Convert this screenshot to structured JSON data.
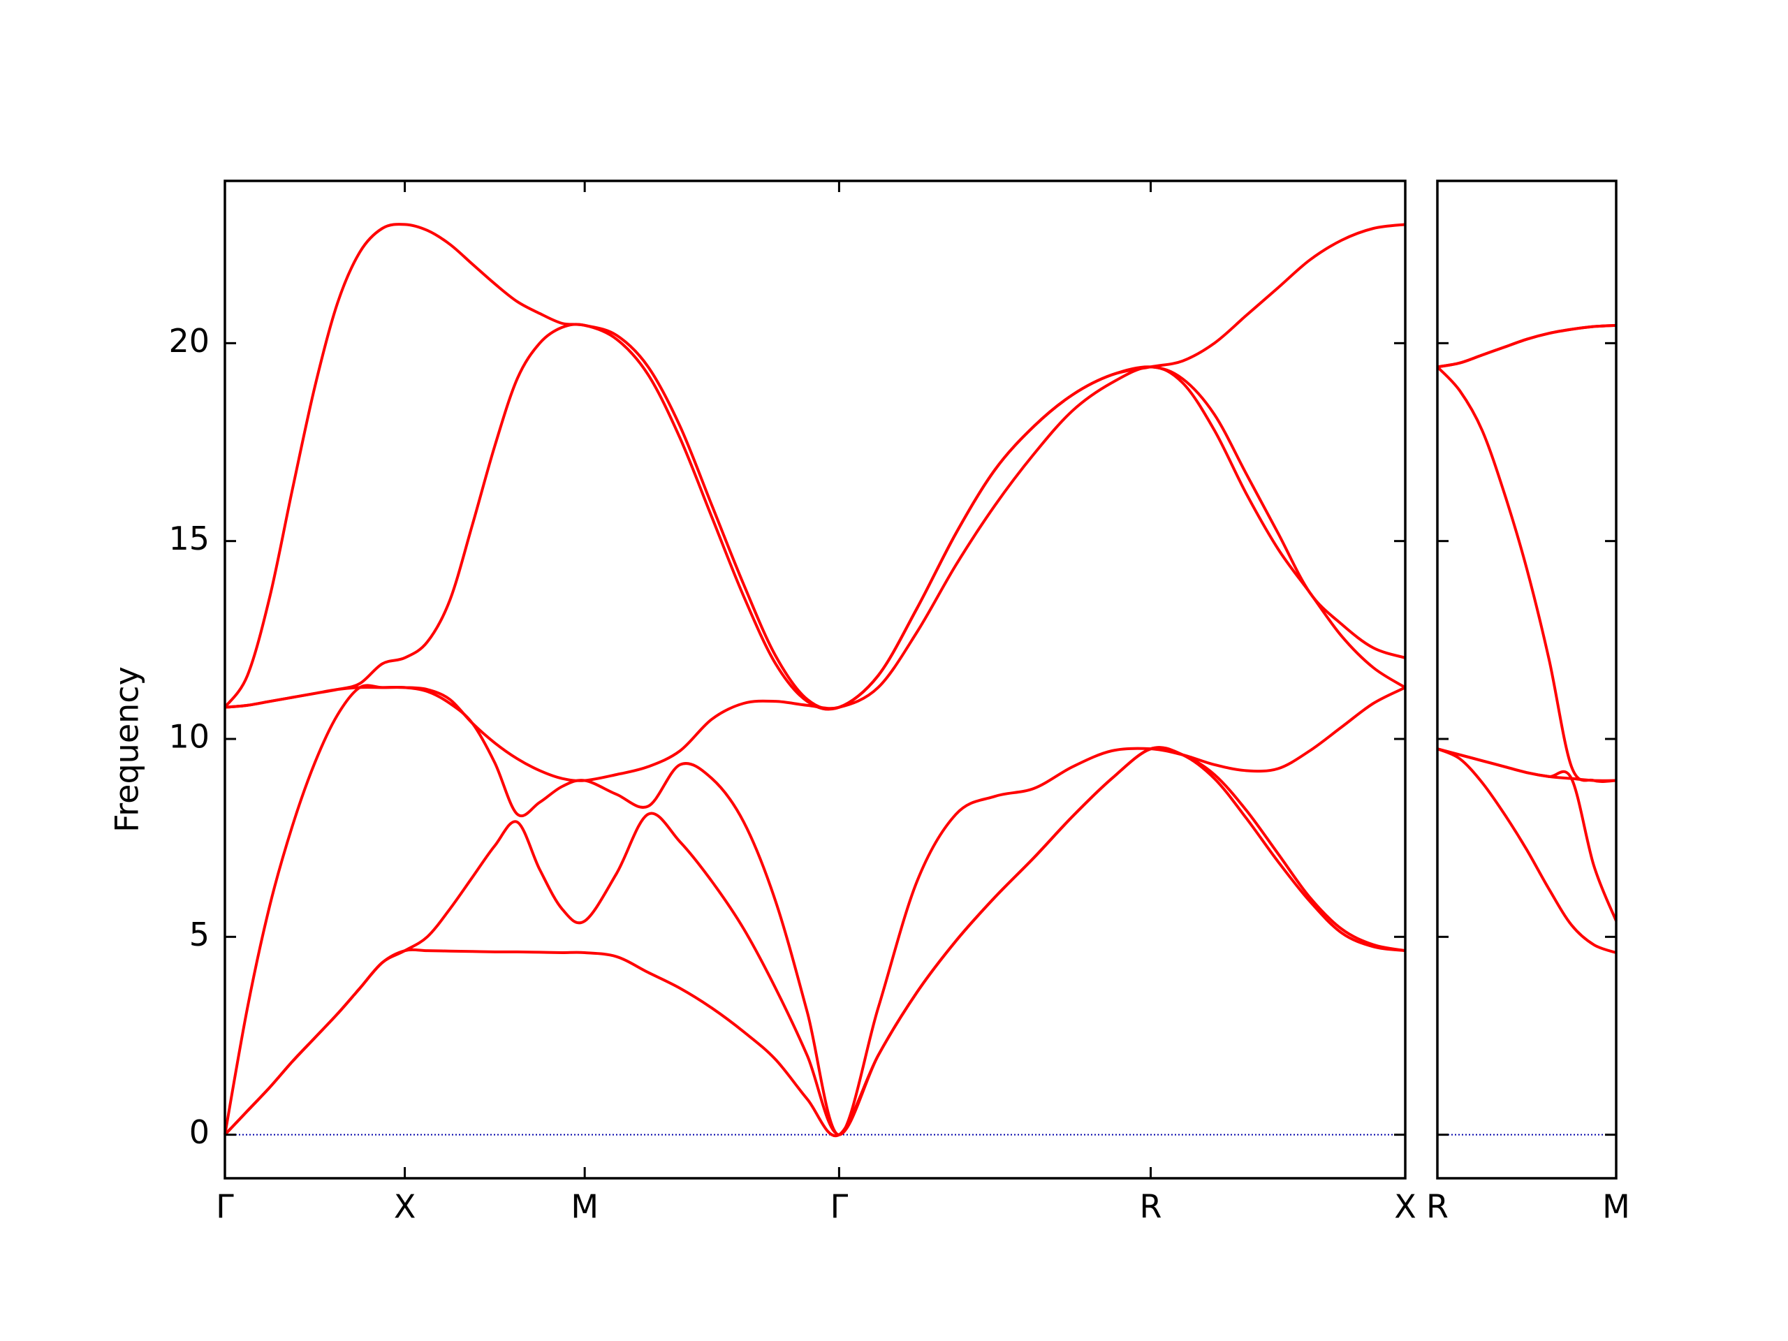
{
  "chart_data": [
    {
      "type": "line",
      "ylabel": "Frequency",
      "x": [
        0,
        0.125,
        0.25,
        0.375,
        0.5,
        0.625,
        0.75,
        0.875,
        1,
        1.125,
        1.25,
        1.375,
        1.5,
        1.625,
        1.75,
        1.875,
        2,
        2.177,
        2.353,
        2.53,
        2.707,
        2.884,
        3.061,
        3.237,
        3.414,
        3.631,
        3.847,
        4.064,
        4.28,
        4.497,
        4.713,
        4.93,
        5.146,
        5.323,
        5.5,
        5.677,
        5.854,
        6.03,
        6.207,
        6.384,
        6.561
      ],
      "xlim": [
        0,
        6.561
      ],
      "ylim": [
        -1.1,
        24.1
      ],
      "xticks": [
        {
          "value": 0,
          "label": "Γ"
        },
        {
          "value": 1,
          "label": "X"
        },
        {
          "value": 2,
          "label": "M"
        },
        {
          "value": 3.414,
          "label": "Γ"
        },
        {
          "value": 5.146,
          "label": "R"
        },
        {
          "value": 6.561,
          "label": "X"
        }
      ],
      "yticks": [
        0,
        5,
        10,
        15,
        20
      ],
      "ytick_labels": true,
      "hline": 0,
      "hline_color": "#0000aa",
      "series": [
        {
          "color": "#ff0000",
          "values": [
            0,
            0.6,
            1.2,
            1.85,
            2.45,
            3.05,
            3.7,
            4.35,
            4.65,
            4.65,
            4.64,
            4.63,
            4.62,
            4.62,
            4.61,
            4.6,
            4.6,
            4.5,
            4.1,
            3.7,
            3.2,
            2.6,
            1.9,
            0.9,
            0,
            2.0,
            3.6,
            4.9,
            6.0,
            7.0,
            8.05,
            9.0,
            9.75,
            9.6,
            9.0,
            8.0,
            6.9,
            5.9,
            5.1,
            4.75,
            4.65
          ]
        },
        {
          "color": "#ff0000",
          "values": [
            0,
            0.6,
            1.2,
            1.85,
            2.45,
            3.05,
            3.7,
            4.35,
            4.65,
            5.0,
            5.7,
            6.5,
            7.3,
            7.9,
            6.7,
            5.7,
            5.4,
            6.6,
            8.1,
            7.4,
            6.4,
            5.2,
            3.7,
            2.0,
            0,
            2.0,
            3.6,
            4.9,
            6.0,
            7.0,
            8.05,
            9.0,
            9.75,
            9.6,
            9.1,
            8.2,
            7.1,
            6.0,
            5.2,
            4.8,
            4.65
          ]
        },
        {
          "color": "#ff0000",
          "values": [
            0,
            3.2,
            5.8,
            7.8,
            9.4,
            10.6,
            11.3,
            11.3,
            11.3,
            11.2,
            10.9,
            10.4,
            9.4,
            8.1,
            8.4,
            8.8,
            8.95,
            8.6,
            8.3,
            9.35,
            9.0,
            7.9,
            5.9,
            3.1,
            0,
            3.2,
            6.4,
            8.1,
            8.55,
            8.75,
            9.3,
            9.7,
            9.75,
            9.6,
            9.35,
            9.2,
            9.25,
            9.7,
            10.3,
            10.9,
            11.3
          ]
        },
        {
          "color": "#ff0000",
          "values": [
            10.8,
            10.85,
            10.95,
            11.05,
            11.15,
            11.25,
            11.3,
            11.3,
            11.3,
            11.25,
            11.0,
            10.4,
            9.9,
            9.5,
            9.2,
            9.0,
            8.95,
            9.1,
            9.3,
            9.7,
            10.5,
            10.9,
            10.95,
            10.85,
            10.8,
            11.3,
            12.7,
            14.4,
            15.9,
            17.2,
            18.3,
            19.0,
            19.4,
            19.0,
            17.8,
            16.2,
            14.8,
            13.7,
            12.6,
            11.8,
            11.3
          ]
        },
        {
          "color": "#ff0000",
          "values": [
            10.8,
            10.85,
            10.95,
            11.05,
            11.15,
            11.25,
            11.4,
            11.9,
            12.05,
            12.45,
            13.5,
            15.4,
            17.4,
            19.1,
            20.0,
            20.4,
            20.45,
            20.1,
            19.2,
            17.6,
            15.6,
            13.6,
            11.9,
            10.95,
            10.8,
            11.6,
            13.3,
            15.2,
            16.8,
            17.9,
            18.7,
            19.2,
            19.4,
            19.1,
            18.2,
            16.7,
            15.2,
            13.7,
            12.9,
            12.3,
            12.05
          ]
        },
        {
          "color": "#ff0000",
          "values": [
            10.8,
            11.6,
            13.6,
            16.3,
            18.9,
            21.0,
            22.3,
            22.9,
            23.0,
            22.85,
            22.5,
            22.0,
            21.5,
            21.05,
            20.75,
            20.5,
            20.45,
            20.2,
            19.4,
            17.9,
            15.9,
            13.9,
            12.1,
            11.0,
            10.8,
            11.6,
            13.3,
            15.2,
            16.8,
            17.9,
            18.7,
            19.2,
            19.4,
            19.55,
            20.0,
            20.7,
            21.4,
            22.1,
            22.6,
            22.9,
            23.0
          ]
        }
      ]
    },
    {
      "type": "line",
      "x": [
        0,
        0.125,
        0.25,
        0.375,
        0.5,
        0.625,
        0.75,
        0.875,
        1
      ],
      "xlim": [
        0,
        1
      ],
      "ylim": [
        -1.1,
        24.1
      ],
      "xticks": [
        {
          "value": 0,
          "label": "R"
        },
        {
          "value": 1,
          "label": "M"
        }
      ],
      "yticks": [
        0,
        5,
        10,
        15,
        20
      ],
      "ytick_labels": false,
      "hline": 0,
      "hline_color": "#0000aa",
      "series": [
        {
          "color": "#ff0000",
          "values": [
            9.75,
            9.5,
            8.9,
            8.1,
            7.2,
            6.2,
            5.3,
            4.8,
            4.6
          ]
        },
        {
          "color": "#ff0000",
          "values": [
            9.75,
            9.6,
            9.45,
            9.3,
            9.15,
            9.05,
            9.0,
            6.8,
            5.4
          ]
        },
        {
          "color": "#ff0000",
          "values": [
            9.75,
            9.6,
            9.45,
            9.3,
            9.15,
            9.05,
            9.0,
            8.95,
            8.95
          ]
        },
        {
          "color": "#ff0000",
          "values": [
            19.4,
            18.8,
            17.8,
            16.2,
            14.3,
            12.0,
            9.3,
            8.95,
            8.95
          ]
        },
        {
          "color": "#ff0000",
          "values": [
            19.4,
            19.5,
            19.7,
            19.9,
            20.1,
            20.25,
            20.35,
            20.42,
            20.45
          ]
        },
        {
          "color": "#ff0000",
          "values": [
            19.4,
            19.5,
            19.7,
            19.9,
            20.1,
            20.25,
            20.35,
            20.42,
            20.45
          ]
        }
      ]
    }
  ]
}
